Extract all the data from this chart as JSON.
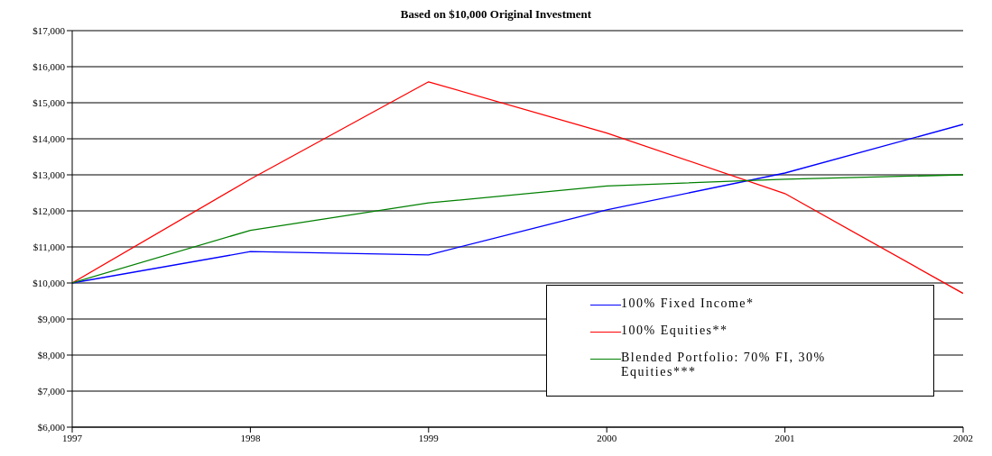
{
  "chart_data": {
    "type": "line",
    "title": "Based on $10,000 Original Investment",
    "x": [
      1997,
      1998,
      1999,
      2000,
      2001,
      2002
    ],
    "series": [
      {
        "name": "100% Fixed Income*",
        "color": "#0000ff",
        "values": [
          10000,
          10870,
          10780,
          12030,
          13050,
          14400
        ]
      },
      {
        "name": "100% Equities**",
        "color": "#ff0000",
        "values": [
          10000,
          12880,
          15580,
          14160,
          12480,
          9710
        ]
      },
      {
        "name": "Blended Portfolio: 70% FI, 30% Equities***",
        "color": "#008000",
        "values": [
          10000,
          11460,
          12220,
          12690,
          12880,
          13000
        ]
      }
    ],
    "xlim": [
      1997,
      2002
    ],
    "xticks": [
      1997,
      1998,
      1999,
      2000,
      2001,
      2002
    ],
    "ylim": [
      6000,
      17000
    ],
    "yticks": [
      {
        "value": 6000,
        "label": "$6,000"
      },
      {
        "value": 7000,
        "label": "$7,000"
      },
      {
        "value": 8000,
        "label": "$8,000"
      },
      {
        "value": 9000,
        "label": "$9,000"
      },
      {
        "value": 10000,
        "label": "$10,000"
      },
      {
        "value": 11000,
        "label": "$11,000"
      },
      {
        "value": 12000,
        "label": "$12,000"
      },
      {
        "value": 13000,
        "label": "$13,000"
      },
      {
        "value": 14000,
        "label": "$14,000"
      },
      {
        "value": 15000,
        "label": "$15,000"
      },
      {
        "value": 16000,
        "label": "$16,000"
      },
      {
        "value": 17000,
        "label": "$17,000"
      }
    ],
    "grid": "y",
    "legend": "bottom right",
    "marker": "none",
    "line_style": "solid"
  }
}
